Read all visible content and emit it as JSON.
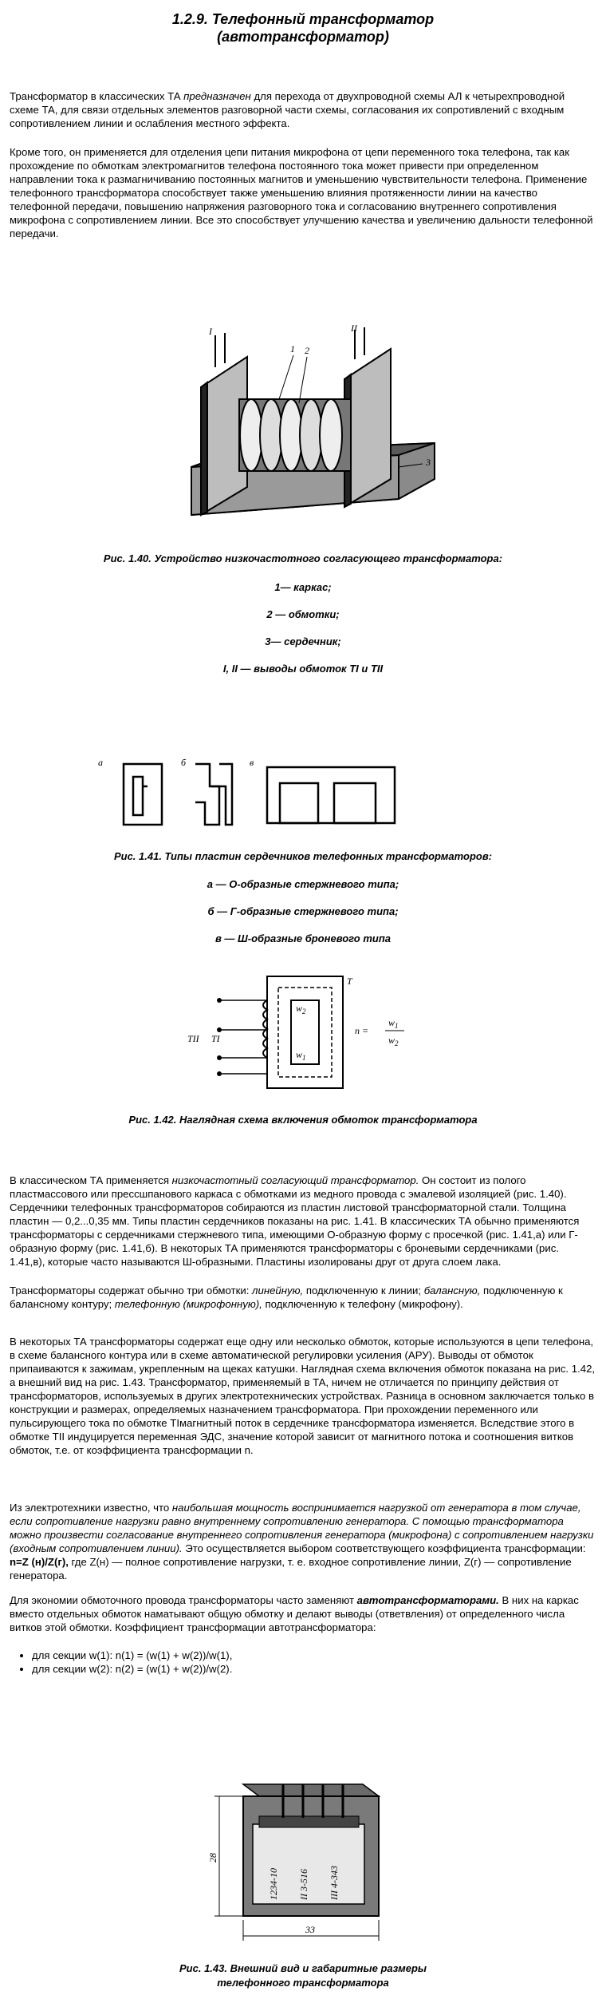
{
  "header": {
    "title_line1": "1.2.9. Телефонный трансформатор",
    "title_line2": "(автотрансформатор)"
  },
  "intro": {
    "p1_a": "Трансформатор в классических ТА ",
    "p1_em": "предназначен",
    "p1_b": " для перехода от двухпроводной схемы АЛ к четырехпроводной схеме ТА, для связи отдельных элементов разговорной части схемы, согласования их сопротивлений с входным сопротивлением линии и ослабления местного эффекта.",
    "p2": "Кроме того, он применяется для отделения цепи питания микрофона от цепи переменного тока телефона, так как прохождение по обмоткам электромагнитов телефона постоянного тока может привести при определенном направлении тока к размагничиванию постоянных магнитов и уменьшению чувствительности телефона. Применение телефонного трансформатора способствует также уменьшению влияния протяженности линии на качество телефонной передачи, повышению напряжения разговорного тока и согласованию внутреннего сопротивления микрофона с сопротивлением линии. Все это способствует улучшению качества и увеличению дальности телефонной передачи."
  },
  "fig140": {
    "labels": {
      "l1": "I",
      "l2": "II",
      "n1": "1",
      "n2": "2",
      "n3": "3"
    },
    "caption": "Рис. 1.40. Устройство низкочастотного согласующего трансформатора:",
    "items": [
      "1— каркас;",
      "2 — обмотки;",
      "3— сердечник;",
      "I, II — выводы обмоток TI и TII"
    ]
  },
  "fig141": {
    "labels": {
      "a": "а",
      "b": "б",
      "v": "в"
    },
    "caption": "Рис. 1.41. Типы пластин сердечников телефонных трансформаторов:",
    "items": [
      "а — О-образные стержневого типа;",
      "б — Г-образные стержневого типа;",
      "в — Ш-образные броневого типа"
    ]
  },
  "fig142": {
    "labels": {
      "T": "T",
      "TII": "TII",
      "TI": "TI",
      "w2": "w",
      "w2sub": "2",
      "w1": "w",
      "w1sub": "1",
      "n": "n =",
      "num": "w",
      "numsub": "1",
      "den": "w",
      "densub": "2"
    },
    "caption": "Рис. 1.42. Наглядная схема включения обмоток трансформатора"
  },
  "body": {
    "p3_a": "В классическом ТА применяется ",
    "p3_em": "низкочастотный согласующий трансформатор.",
    "p3_b": " Он состоит из полого пластмассового или прессшпанового каркаса с обмотками из медного провода с эмалевой изоляцией (рис. 1.40). Сердечники телефонных трансформаторов собираются из пластин листовой трансформаторной стали. Толщина пластин — 0,2...0,35 мм. Типы пластин сердечников показаны на рис. 1.41. В классических ТА обычно применяются трансформаторы с сердечниками стержневого типа, имеющими О-образную форму с просечкой (рис. 1.41,а) или Г-образную форму (рис. 1.41,б). В некоторых ТА применяются трансформаторы с броневыми сердечниками (рис. 1.41,в), которые часто называются Ш-образными. Пластины изолированы друг от друга слоем лака.",
    "p4_a": "Трансформаторы содержат обычно три обмотки: ",
    "p4_em1": "линейную,",
    "p4_b": " подключенную к линии; ",
    "p4_em2": "балансную,",
    "p4_c": " подключенную к балансному контуру; ",
    "p4_em3": "телефонную (микрофонную),",
    "p4_d": " подключенную к телефону (микрофону).",
    "p5": "В некоторых ТА трансформаторы содержат еще одну или несколько обмоток, которые используются в цепи телефона, в схеме балансного контура или в схеме автоматической регулировки усиления (АРУ). Выводы от обмоток припаиваются к зажимам, укрепленным на щеках катушки. Наглядная схема включения обмоток показана на рис. 1.42, а внешний вид на рис. 1.43. Трансформатор, применяемый в ТА, ничем не отличается по принципу действия от трансформаторов, используемых в других электротехнических устройствах. Разница в основном заключается только в конструкции и размерах, определяемых назначением трансформатора. При прохождении переменного или пульсирующего тока по обмотке TIмагнитный поток в сердечнике трансформатора изменяется. Вследствие этого в обмотке TII индуцируется переменная ЭДС, значение которой зависит от магнитного потока и соотношения витков обмоток, т.е. от коэффициента трансформации n.",
    "p6_a": "Из электротехники известно, что ",
    "p6_em": "наибольшая мощность воспринимается нагрузкой от генератора в том случае, если сопротивление нагрузки равно внутреннему сопротивлению генератора. С помощью трансформатора можно произвести согласование внутреннего сопротивления генератора (микрофона) с сопротивлением нагрузки (входным сопротивлением линии).",
    "p6_b": " Это осуществляется выбором соответствующего коэффициента трансформации: ",
    "p6_bold": "n=Z (н)/Z(г),",
    "p6_c": " где Z(н) — полное сопротивление нагрузки, т. е. входное сопротивление линии, Z(г) — сопротивление генератора.",
    "p7_a": "Для экономии обмоточного провода трансформаторы часто заменяют ",
    "p7_bem": "автотрансформаторами.",
    "p7_b": " В них на каркас вместо отдельных обмоток наматывают общую обмотку и делают выводы (ответвления) от определенного числа витков этой обмотки. Коэффициент трансформации автотрансформатора:",
    "bullets": [
      "для секции w(1): n(1) = (w(1) + w(2))/w(1),",
      "для секции w(2): n(2) = (w(1) + w(2))/w(2)."
    ]
  },
  "fig143": {
    "labels": {
      "dim_h": "28",
      "dim_w": "33",
      "mark1": "1234-10",
      "mark2": "II 3-516",
      "mark3": "III 4-343"
    },
    "caption_line1": "Рис. 1.43. Внешний вид и габаритные размеры",
    "caption_line2": "телефонного трансформатора"
  }
}
